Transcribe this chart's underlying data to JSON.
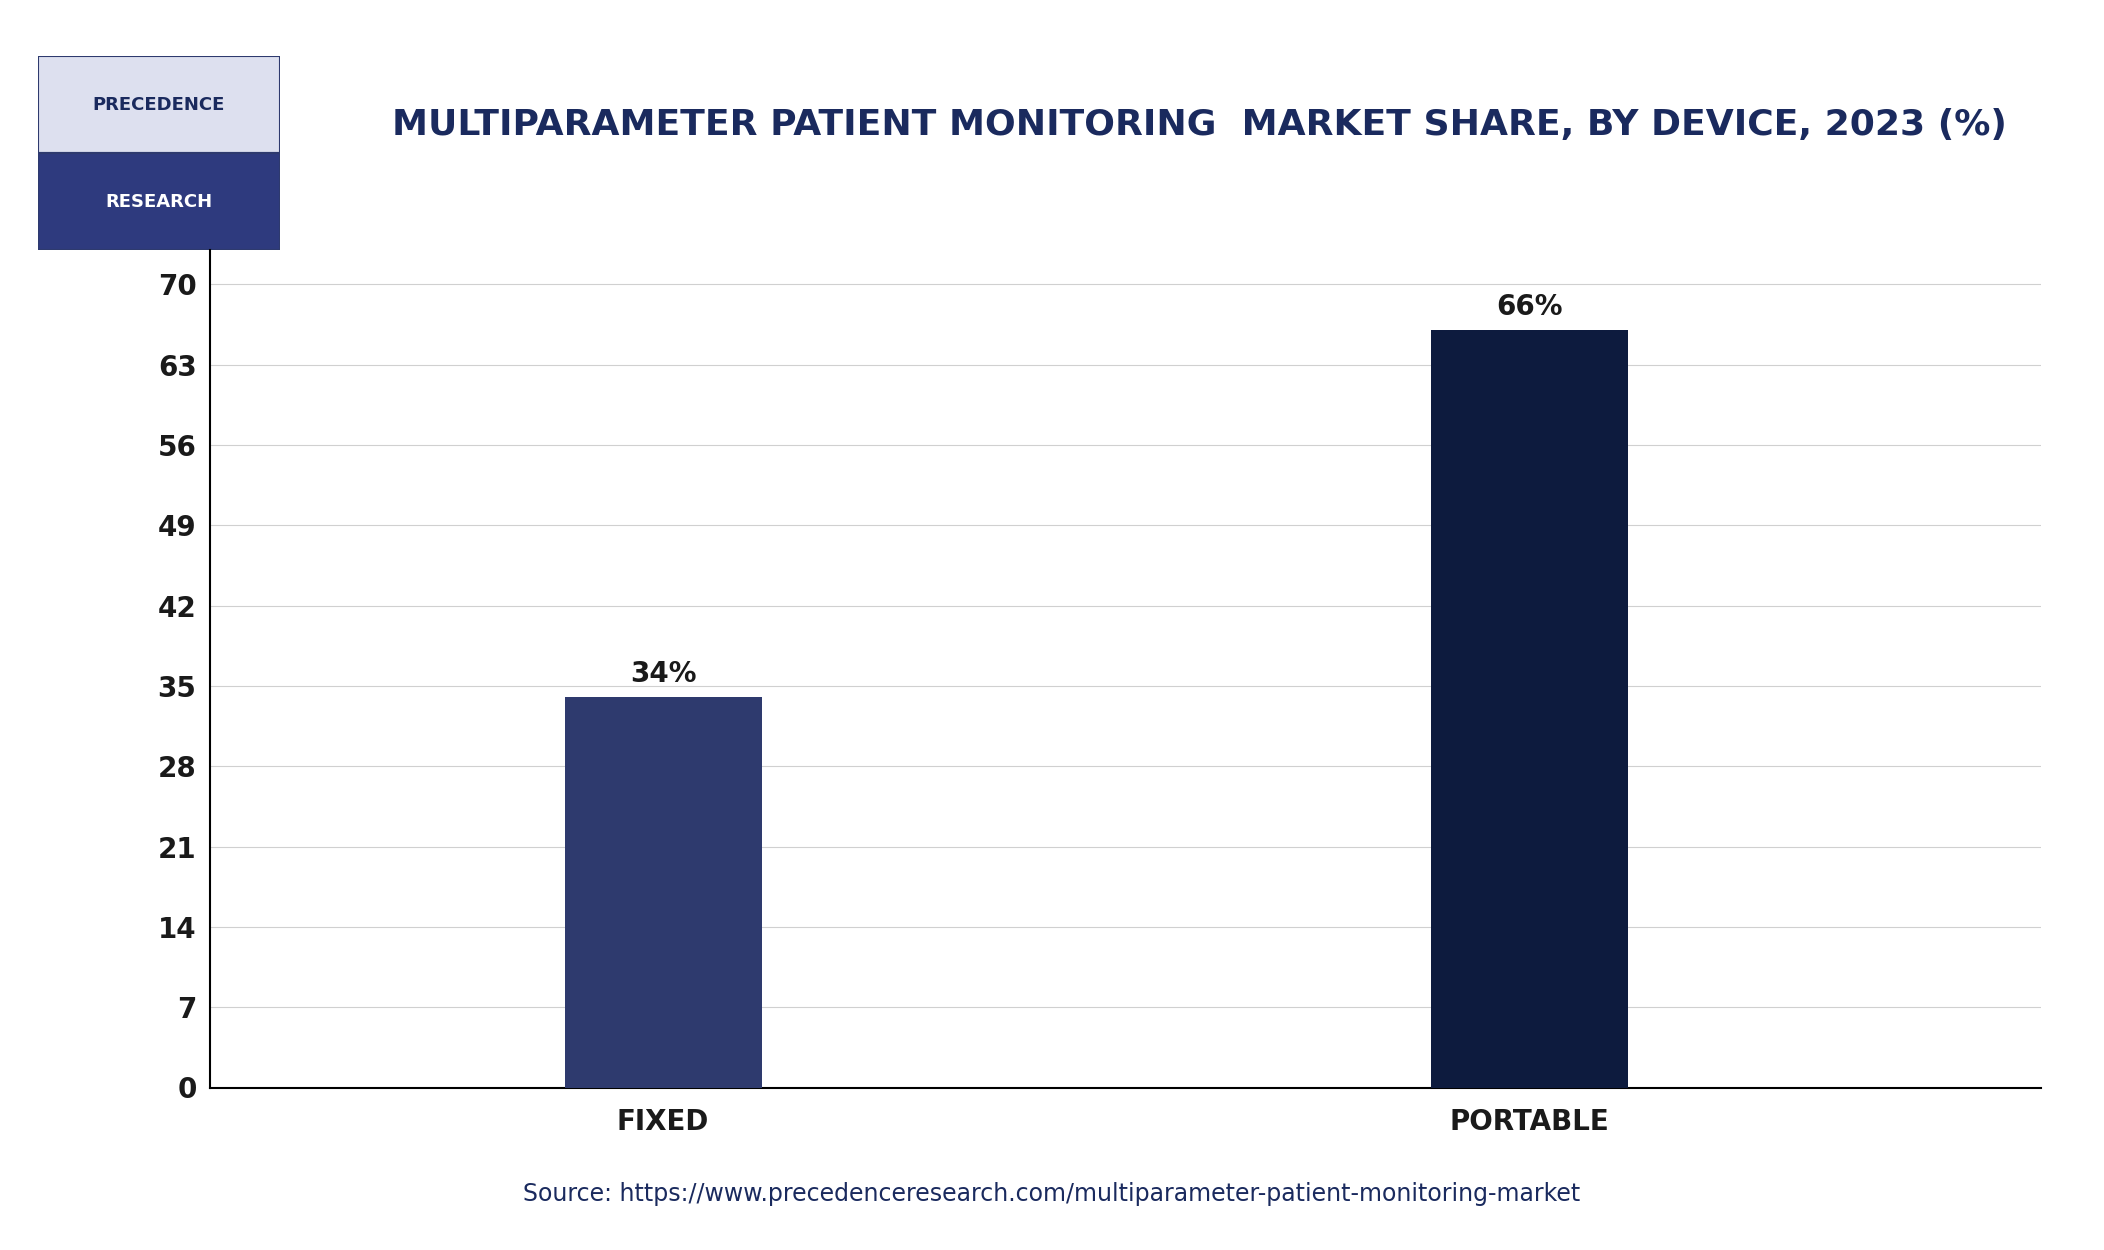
{
  "title": "MULTIPARAMETER PATIENT MONITORING  MARKET SHARE, BY DEVICE, 2023 (%)",
  "categories": [
    "FIXED",
    "PORTABLE"
  ],
  "values": [
    34,
    66
  ],
  "bar_colors": [
    "#2e3a6e",
    "#0d1b3e"
  ],
  "bar_labels": [
    "34%",
    "66%"
  ],
  "yticks": [
    0,
    7,
    14,
    21,
    28,
    35,
    42,
    49,
    56,
    63,
    70
  ],
  "ylim": [
    0,
    73
  ],
  "source_text": "Source: https://www.precedenceresearch.com/multiparameter-patient-monitoring-market",
  "background_color": "#ffffff",
  "title_color": "#1a2a5e",
  "tick_color": "#1a1a1a",
  "bar_label_color": "#1a1a1a",
  "grid_color": "#d0d0d0",
  "source_color": "#1a2a5e",
  "logo_top_color": "#e8e8f0",
  "logo_bottom_color": "#2e3a7e",
  "logo_text_top": "PRECEDENCE",
  "logo_text_bottom": "RESEARCH",
  "title_fontsize": 26,
  "tick_fontsize": 20,
  "label_fontsize": 20,
  "bar_label_fontsize": 20,
  "source_fontsize": 17,
  "border_color": "#1a2a5e",
  "x_positions": [
    0.28,
    0.72
  ],
  "bar_width": 0.1,
  "xlim": [
    0.05,
    0.98
  ]
}
